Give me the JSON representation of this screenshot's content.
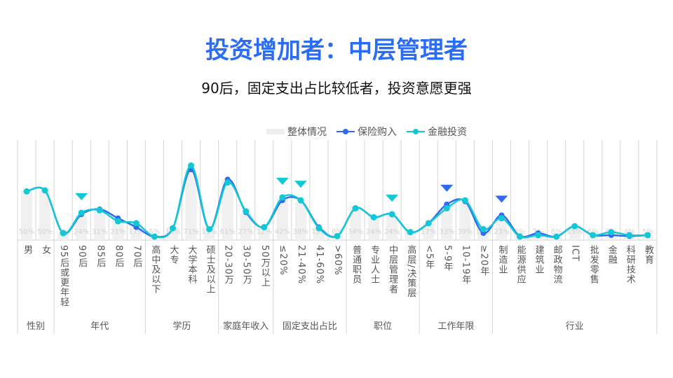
{
  "title": "投资增加者：中层管理者",
  "subtitle": "90后，固定支出占比较低者，投资意愿更强",
  "colors": {
    "title": "#2a6df4",
    "insurance": "#2f6bf2",
    "finance": "#13c8d6",
    "bar": "#f0f0f0"
  },
  "chart_data": {
    "type": "bar+line",
    "legend_position": "top-center",
    "legend": [
      "整体情况",
      "保险购入",
      "金融投资"
    ],
    "grid": true,
    "ylim": [
      0,
      100
    ],
    "groups": [
      {
        "label": "性别",
        "count": 2
      },
      {
        "label": "年代",
        "count": 5
      },
      {
        "label": "学历",
        "count": 4
      },
      {
        "label": "家庭年收入",
        "count": 3
      },
      {
        "label": "固定支出占比",
        "count": 4
      },
      {
        "label": "职位",
        "count": 4
      },
      {
        "label": "工作年限",
        "count": 4
      },
      {
        "label": "行业",
        "count": 9
      }
    ],
    "categories": [
      "男",
      "女",
      "95后或更年轻",
      "90后",
      "85后",
      "80后",
      "70后",
      "高中及以下",
      "大专",
      "大学本科",
      "硕士及以上",
      "20-30万",
      "30-50万",
      "50万以上",
      "≤20%",
      "21-40%",
      "41-60%",
      ">60%",
      "普通职员",
      "专业人士",
      "中层管理者",
      "高层/决策层",
      "<5年",
      "5-9年",
      "10-19年",
      "≥20年",
      "制造业",
      "能源供应",
      "建筑业",
      "邮政物流",
      "ICT",
      "批发零售",
      "金融",
      "科研技术",
      "教育"
    ],
    "overall_labels": [
      "50%",
      "50%",
      "7%",
      "24%",
      "31%",
      "21%",
      "17%",
      "5%",
      "13%",
      "71%",
      "11%",
      "61%",
      "27%",
      "12%",
      "42%",
      "38%",
      "13%",
      "6%",
      "34%",
      "24%",
      "24%",
      "9%",
      "17%",
      "33%",
      "39%",
      "10%",
      "23%",
      "5%",
      "7%",
      "6%",
      "15%",
      "6%",
      "6%",
      "4%",
      "5%"
    ],
    "overall": [
      50,
      50,
      7,
      24,
      31,
      21,
      17,
      5,
      13,
      71,
      11,
      61,
      27,
      12,
      42,
      38,
      13,
      6,
      34,
      24,
      24,
      9,
      17,
      33,
      39,
      10,
      23,
      5,
      7,
      6,
      15,
      6,
      6,
      4,
      5
    ],
    "series": [
      {
        "name": "保险购入",
        "values": [
          49,
          50,
          7,
          26,
          31,
          22,
          13,
          3.5,
          12,
          71,
          11,
          61,
          28,
          13,
          40,
          40,
          13,
          4,
          32,
          23,
          26,
          8,
          17,
          36,
          39,
          7,
          25,
          4,
          7,
          3.5,
          14,
          5,
          5,
          4,
          5
        ]
      },
      {
        "name": "金融投资",
        "values": [
          49,
          50,
          7,
          27.5,
          30,
          19,
          17,
          3.5,
          12,
          75,
          11,
          58,
          29,
          13,
          43,
          40,
          12,
          4,
          32,
          23,
          26,
          8,
          17,
          32,
          40,
          11,
          22,
          3.5,
          5,
          3.5,
          14,
          5,
          8,
          5,
          5
        ]
      }
    ],
    "highlights": [
      {
        "category": "90后",
        "series": "金融投资"
      },
      {
        "category": "≤20%",
        "series": "金融投资"
      },
      {
        "category": "21-40%",
        "series": "金融投资"
      },
      {
        "category": "中层管理者",
        "series": "金融投资"
      },
      {
        "category": "5-9年",
        "series": "保险购入"
      },
      {
        "category": "制造业",
        "series": "保险购入"
      }
    ]
  }
}
